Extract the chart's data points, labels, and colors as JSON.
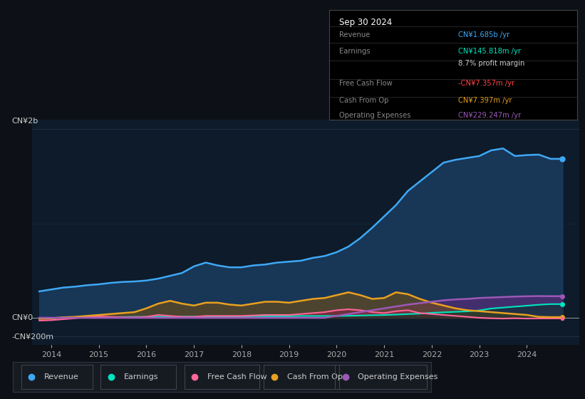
{
  "bg_color": "#0d1117",
  "chart_bg": "#0d1b2a",
  "grid_color": "#1e2d40",
  "title_box": {
    "date": "Sep 30 2024",
    "rows": [
      {
        "label": "Revenue",
        "value": "CN¥1.685b /yr",
        "value_color": "#3fa8f5"
      },
      {
        "label": "Earnings",
        "value": "CN¥145.818m /yr",
        "value_color": "#00e5c0"
      },
      {
        "label": "",
        "value": "8.7% profit margin",
        "value_color": "#cccccc"
      },
      {
        "label": "Free Cash Flow",
        "value": "-CN¥7.357m /yr",
        "value_color": "#ff4444"
      },
      {
        "label": "Cash From Op",
        "value": "CN¥7.397m /yr",
        "value_color": "#e8a020"
      },
      {
        "label": "Operating Expenses",
        "value": "CN¥229.247m /yr",
        "value_color": "#9b59b6"
      }
    ]
  },
  "ylabel_top": "CN¥2b",
  "ylabel_zero": "CN¥0",
  "ylabel_neg": "-CN¥200m",
  "xlim": [
    2013.6,
    2025.1
  ],
  "ylim": [
    -290,
    2100
  ],
  "xticks": [
    2014,
    2015,
    2016,
    2017,
    2018,
    2019,
    2020,
    2021,
    2022,
    2023,
    2024
  ],
  "revenue_x": [
    2013.75,
    2014.0,
    2014.25,
    2014.5,
    2014.75,
    2015.0,
    2015.25,
    2015.5,
    2015.75,
    2016.0,
    2016.25,
    2016.5,
    2016.75,
    2017.0,
    2017.25,
    2017.5,
    2017.75,
    2018.0,
    2018.25,
    2018.5,
    2018.75,
    2019.0,
    2019.25,
    2019.5,
    2019.75,
    2020.0,
    2020.25,
    2020.5,
    2020.75,
    2021.0,
    2021.25,
    2021.5,
    2021.75,
    2022.0,
    2022.25,
    2022.5,
    2022.75,
    2023.0,
    2023.25,
    2023.5,
    2023.75,
    2024.0,
    2024.25,
    2024.5,
    2024.75
  ],
  "revenue_y": [
    280,
    300,
    320,
    330,
    345,
    355,
    370,
    380,
    385,
    395,
    415,
    445,
    475,
    545,
    585,
    555,
    535,
    535,
    555,
    565,
    585,
    595,
    605,
    635,
    655,
    695,
    755,
    845,
    955,
    1075,
    1195,
    1345,
    1445,
    1545,
    1645,
    1675,
    1695,
    1715,
    1775,
    1795,
    1715,
    1725,
    1730,
    1685,
    1685
  ],
  "revenue_color": "#3fa8f5",
  "revenue_fill": "#1a3a5c",
  "earnings_x": [
    2013.75,
    2014.0,
    2014.25,
    2014.5,
    2014.75,
    2015.0,
    2015.25,
    2015.5,
    2015.75,
    2016.0,
    2016.25,
    2016.5,
    2016.75,
    2017.0,
    2017.25,
    2017.5,
    2017.75,
    2018.0,
    2018.25,
    2018.5,
    2018.75,
    2019.0,
    2019.25,
    2019.5,
    2019.75,
    2020.0,
    2020.25,
    2020.5,
    2020.75,
    2021.0,
    2021.25,
    2021.5,
    2021.75,
    2022.0,
    2022.25,
    2022.5,
    2022.75,
    2023.0,
    2023.25,
    2023.5,
    2023.75,
    2024.0,
    2024.25,
    2024.5,
    2024.75
  ],
  "earnings_y": [
    -8,
    -4,
    2,
    5,
    6,
    6,
    6,
    8,
    10,
    10,
    12,
    12,
    12,
    12,
    14,
    14,
    14,
    14,
    17,
    17,
    17,
    17,
    19,
    19,
    19,
    19,
    21,
    24,
    27,
    29,
    34,
    39,
    44,
    53,
    58,
    63,
    68,
    78,
    98,
    108,
    118,
    128,
    138,
    145,
    145
  ],
  "earnings_color": "#00e5c0",
  "fcf_x": [
    2013.75,
    2014.0,
    2014.25,
    2014.5,
    2014.75,
    2015.0,
    2015.25,
    2015.5,
    2015.75,
    2016.0,
    2016.25,
    2016.5,
    2016.75,
    2017.0,
    2017.25,
    2017.5,
    2017.75,
    2018.0,
    2018.25,
    2018.5,
    2018.75,
    2019.0,
    2019.25,
    2019.5,
    2019.75,
    2020.0,
    2020.25,
    2020.5,
    2020.75,
    2021.0,
    2021.25,
    2021.5,
    2021.75,
    2022.0,
    2022.25,
    2022.5,
    2022.75,
    2023.0,
    2023.25,
    2023.5,
    2023.75,
    2024.0,
    2024.25,
    2024.5,
    2024.75
  ],
  "fcf_y": [
    -30,
    -25,
    -15,
    -5,
    10,
    15,
    10,
    5,
    5,
    10,
    30,
    20,
    10,
    10,
    20,
    20,
    20,
    20,
    25,
    30,
    30,
    30,
    40,
    50,
    60,
    80,
    90,
    80,
    60,
    50,
    70,
    80,
    50,
    40,
    30,
    20,
    10,
    0,
    -5,
    -8,
    -5,
    -8,
    -7,
    -7,
    -7
  ],
  "fcf_color": "#ff6699",
  "cfop_x": [
    2013.75,
    2014.0,
    2014.25,
    2014.5,
    2014.75,
    2015.0,
    2015.25,
    2015.5,
    2015.75,
    2016.0,
    2016.25,
    2016.5,
    2016.75,
    2017.0,
    2017.25,
    2017.5,
    2017.75,
    2018.0,
    2018.25,
    2018.5,
    2018.75,
    2019.0,
    2019.25,
    2019.5,
    2019.75,
    2020.0,
    2020.25,
    2020.5,
    2020.75,
    2021.0,
    2021.25,
    2021.5,
    2021.75,
    2022.0,
    2022.25,
    2022.5,
    2022.75,
    2023.0,
    2023.25,
    2023.5,
    2023.75,
    2024.0,
    2024.25,
    2024.5,
    2024.75
  ],
  "cfop_y": [
    -10,
    -5,
    5,
    10,
    20,
    30,
    40,
    50,
    60,
    100,
    150,
    180,
    150,
    130,
    160,
    160,
    140,
    130,
    150,
    170,
    170,
    160,
    180,
    200,
    210,
    240,
    270,
    240,
    200,
    210,
    270,
    250,
    200,
    160,
    130,
    100,
    80,
    70,
    60,
    50,
    40,
    30,
    10,
    7,
    7
  ],
  "cfop_color": "#e8a020",
  "opex_x": [
    2013.75,
    2014.0,
    2014.25,
    2014.5,
    2014.75,
    2015.0,
    2015.25,
    2015.5,
    2015.75,
    2016.0,
    2016.25,
    2016.5,
    2016.75,
    2017.0,
    2017.25,
    2017.5,
    2017.75,
    2018.0,
    2018.25,
    2018.5,
    2018.75,
    2019.0,
    2019.25,
    2019.5,
    2019.75,
    2020.0,
    2020.25,
    2020.5,
    2020.75,
    2021.0,
    2021.25,
    2021.5,
    2021.75,
    2022.0,
    2022.25,
    2022.5,
    2022.75,
    2023.0,
    2023.25,
    2023.5,
    2023.75,
    2024.0,
    2024.25,
    2024.5,
    2024.75
  ],
  "opex_y": [
    0,
    0,
    0,
    0,
    0,
    0,
    0,
    0,
    0,
    0,
    0,
    0,
    0,
    0,
    0,
    0,
    0,
    0,
    0,
    0,
    0,
    0,
    0,
    0,
    0,
    20,
    40,
    60,
    80,
    100,
    120,
    140,
    155,
    170,
    185,
    195,
    200,
    210,
    215,
    220,
    225,
    228,
    230,
    229,
    229
  ],
  "opex_color": "#9b59b6",
  "legend": [
    {
      "label": "Revenue",
      "color": "#3fa8f5"
    },
    {
      "label": "Earnings",
      "color": "#00e5c0"
    },
    {
      "label": "Free Cash Flow",
      "color": "#ff6699"
    },
    {
      "label": "Cash From Op",
      "color": "#e8a020"
    },
    {
      "label": "Operating Expenses",
      "color": "#9b59b6"
    }
  ]
}
